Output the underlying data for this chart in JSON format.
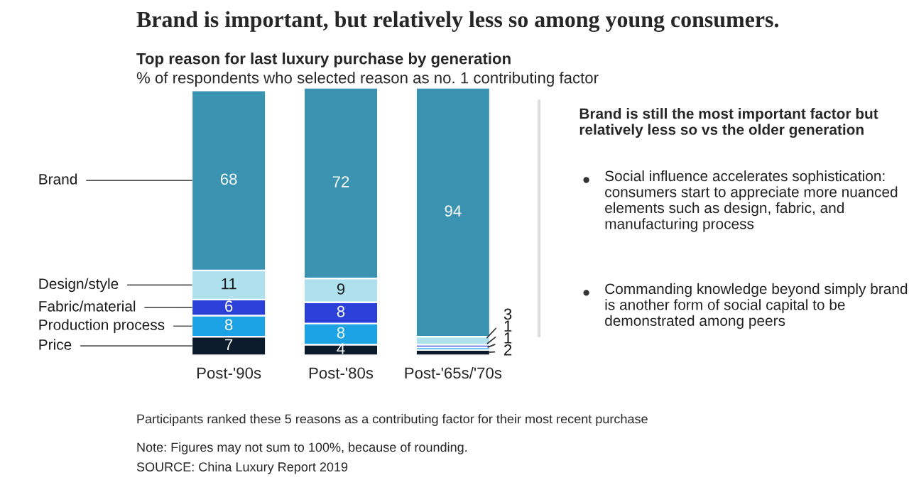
{
  "chart_data": {
    "type": "bar",
    "stacked": true,
    "data_labels": true,
    "tick_labels": "x",
    "grid": false,
    "legend": false,
    "title": "Brand is important, but relatively less so among young consumers.",
    "subtitle": "Top reason for last luxury purchase by generation",
    "ylabel": "% of respondents who selected reason as no. 1 contributing factor",
    "categories": [
      "Post-'90s",
      "Post-'80s",
      "Post-'65s/'70s"
    ],
    "series": [
      {
        "name": "Price",
        "color": "#0b1b2b",
        "values": [
          7,
          4,
          2
        ]
      },
      {
        "name": "Production process",
        "color": "#1ba3e6",
        "values": [
          8,
          8,
          1
        ]
      },
      {
        "name": "Fabric/material",
        "color": "#2a40d8",
        "values": [
          6,
          8,
          1
        ]
      },
      {
        "name": "Design/style",
        "color": "#aee0ee",
        "values": [
          11,
          9,
          3
        ]
      },
      {
        "name": "Brand",
        "color": "#3a93b1",
        "values": [
          68,
          72,
          94
        ]
      }
    ],
    "annotations": [
      "Brand is still the most important factor but relatively less so vs the older generation",
      "Social influence accelerates sophistication: consumers start to appreciate more nuanced elements such as design, fabric, and manufacturing process",
      "Commanding knowledge beyond simply brand is another form of social capital to be demonstrated among peers",
      "Participants ranked these 5 reasons as a contributing factor for their most recent purchase",
      "Note: Figures may not sum to 100%, because of rounding.",
      "SOURCE: China Luxury Report 2019"
    ]
  }
}
